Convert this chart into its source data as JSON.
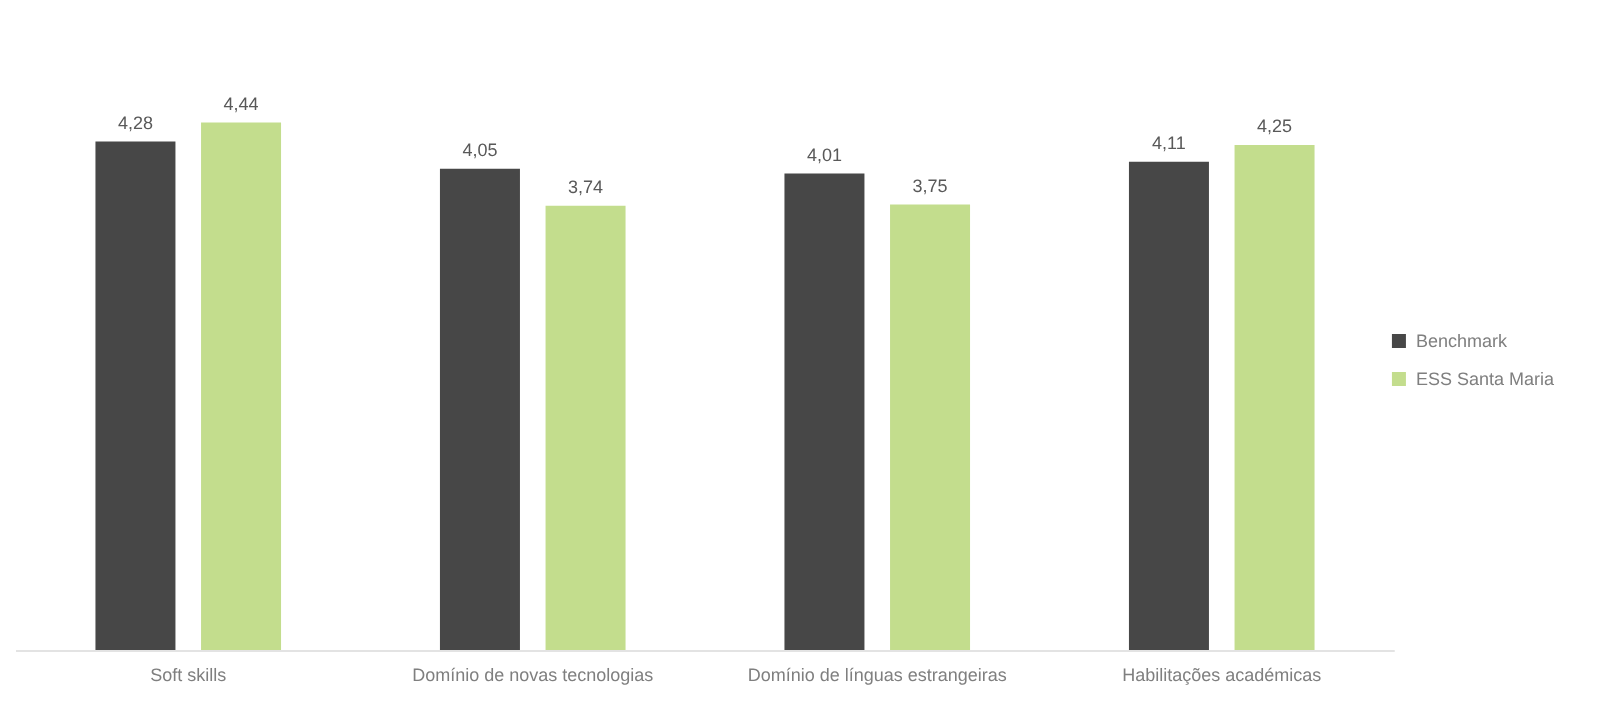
{
  "chart_data": {
    "type": "bar",
    "categories": [
      "Soft skills",
      "Domínio de novas tecnologias",
      "Domínio de línguas estrangeiras",
      "Habilitações académicas"
    ],
    "series": [
      {
        "name": "Benchmark",
        "color": "#474747",
        "values": [
          4.28,
          4.05,
          4.01,
          4.11
        ],
        "value_labels": [
          "4,28",
          "4,05",
          "4,01",
          "4,11"
        ]
      },
      {
        "name": "ESS Santa Maria",
        "color": "#c3dd8d",
        "values": [
          4.44,
          3.74,
          3.75,
          4.25
        ],
        "value_labels": [
          "4,44",
          "3,74",
          "3,75",
          "4,25"
        ]
      }
    ],
    "legend": "right"
  }
}
